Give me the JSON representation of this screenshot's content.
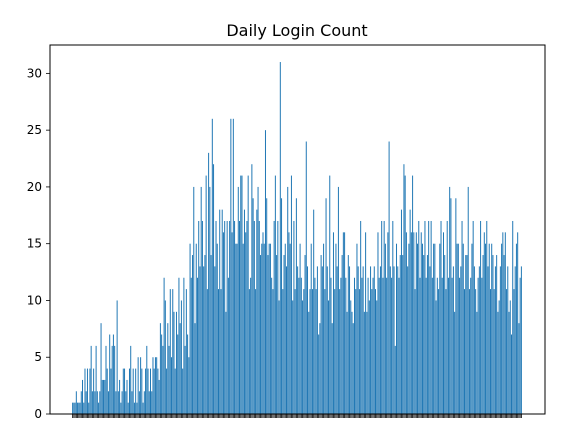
{
  "chart_data": {
    "type": "bar",
    "title": "Daily Login Count",
    "xlabel": "",
    "ylabel": "",
    "ylim": [
      0,
      32.5
    ],
    "yticks": [
      0,
      5,
      10,
      15,
      20,
      25,
      30
    ],
    "grid": false,
    "legend": "none",
    "bar_color": "#1f77b4",
    "x_tick_labels_visible": false,
    "values": [
      1,
      1,
      1,
      2,
      1,
      1,
      1,
      2,
      3,
      1,
      4,
      2,
      4,
      1,
      4,
      6,
      2,
      4,
      2,
      6,
      2,
      1,
      2,
      8,
      3,
      3,
      3,
      6,
      4,
      2,
      7,
      4,
      6,
      7,
      6,
      2,
      10,
      2,
      3,
      1,
      2,
      4,
      4,
      2,
      3,
      1,
      4,
      6,
      2,
      4,
      1,
      4,
      1,
      5,
      2,
      5,
      4,
      1,
      2,
      4,
      6,
      4,
      2,
      4,
      2,
      5,
      4,
      5,
      5,
      4,
      3,
      8,
      7,
      6,
      12,
      10,
      4,
      8,
      6,
      11,
      5,
      11,
      9,
      4,
      9,
      7,
      12,
      8,
      10,
      4,
      12,
      6,
      11,
      7,
      5,
      15,
      12,
      14,
      20,
      8,
      15,
      12,
      17,
      13,
      20,
      17,
      13,
      14,
      21,
      11,
      23,
      20,
      14,
      26,
      22,
      13,
      17,
      15,
      11,
      18,
      11,
      18,
      16,
      17,
      9,
      17,
      12,
      17,
      26,
      16,
      26,
      17,
      15,
      15,
      20,
      17,
      21,
      21,
      15,
      18,
      16,
      17,
      21,
      11,
      12,
      22,
      19,
      17,
      11,
      18,
      20,
      17,
      14,
      15,
      16,
      15,
      25,
      19,
      14,
      15,
      15,
      12,
      11,
      17,
      21,
      14,
      17,
      10,
      31,
      19,
      11,
      14,
      15,
      13,
      20,
      16,
      15,
      21,
      10,
      17,
      11,
      19,
      13,
      12,
      15,
      12,
      10,
      11,
      14,
      24,
      13,
      9,
      11,
      15,
      11,
      18,
      12,
      11,
      13,
      7,
      8,
      14,
      13,
      15,
      11,
      19,
      13,
      10,
      21,
      12,
      8,
      16,
      11,
      15,
      13,
      20,
      11,
      12,
      14,
      16,
      16,
      12,
      9,
      14,
      13,
      10,
      9,
      8,
      12,
      11,
      15,
      13,
      11,
      17,
      12,
      13,
      9,
      16,
      9,
      12,
      10,
      13,
      11,
      12,
      13,
      11,
      10,
      16,
      12,
      13,
      17,
      12,
      17,
      15,
      12,
      16,
      24,
      13,
      12,
      17,
      13,
      6,
      15,
      13,
      12,
      14,
      18,
      14,
      22,
      21,
      16,
      13,
      15,
      18,
      16,
      21,
      16,
      11,
      16,
      15,
      17,
      12,
      16,
      15,
      14,
      17,
      12,
      14,
      17,
      13,
      17,
      12,
      15,
      15,
      10,
      12,
      11,
      15,
      17,
      12,
      16,
      14,
      11,
      17,
      12,
      20,
      19,
      12,
      13,
      9,
      19,
      15,
      15,
      12,
      13,
      17,
      15,
      11,
      14,
      14,
      20,
      11,
      12,
      15,
      17,
      13,
      11,
      9,
      12,
      13,
      17,
      12,
      14,
      16,
      15,
      17,
      13,
      15,
      11,
      15,
      14,
      11,
      13,
      14,
      9,
      10,
      13,
      15,
      16,
      14,
      16,
      11,
      13,
      9,
      10,
      7,
      17,
      11,
      13,
      15,
      16,
      8,
      12,
      13
    ]
  }
}
